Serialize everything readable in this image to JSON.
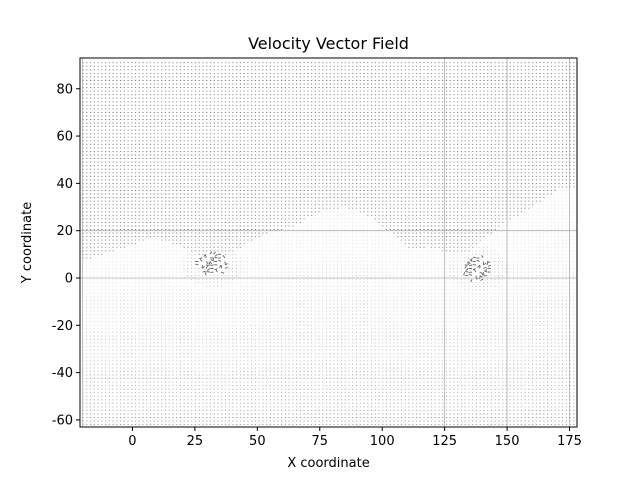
{
  "chart_data": {
    "type": "quiver",
    "title": "Velocity Vector Field",
    "xlabel": "X coordinate",
    "ylabel": "Y coordinate",
    "xlim": [
      -21,
      178
    ],
    "ylim": [
      -63,
      93
    ],
    "xticks": [
      0,
      25,
      50,
      75,
      100,
      125,
      150,
      175
    ],
    "yticks": [
      -60,
      -40,
      -20,
      0,
      20,
      40,
      60,
      80
    ],
    "grid": true,
    "grid_lines_x": [
      -20,
      125,
      150,
      175
    ],
    "grid_lines_y": [
      0,
      20
    ],
    "field_region": {
      "x_range": [
        -20,
        177
      ],
      "y_range": [
        -62,
        92
      ],
      "spacing": 1.5
    },
    "upper_boundary": [
      {
        "x": -20,
        "y": 7
      },
      {
        "x": -5,
        "y": 12
      },
      {
        "x": 8,
        "y": 17
      },
      {
        "x": 20,
        "y": 13
      },
      {
        "x": 30,
        "y": 8
      },
      {
        "x": 38,
        "y": 10
      },
      {
        "x": 45,
        "y": 14
      },
      {
        "x": 55,
        "y": 19
      },
      {
        "x": 65,
        "y": 22
      },
      {
        "x": 75,
        "y": 28
      },
      {
        "x": 85,
        "y": 30
      },
      {
        "x": 95,
        "y": 26
      },
      {
        "x": 103,
        "y": 19
      },
      {
        "x": 110,
        "y": 12
      },
      {
        "x": 118,
        "y": 13
      },
      {
        "x": 125,
        "y": 11
      },
      {
        "x": 133,
        "y": 10
      },
      {
        "x": 140,
        "y": 16
      },
      {
        "x": 150,
        "y": 24
      },
      {
        "x": 160,
        "y": 30
      },
      {
        "x": 170,
        "y": 37
      },
      {
        "x": 177,
        "y": 38
      }
    ],
    "disturbance_regions": [
      {
        "x": 32,
        "y": 6
      },
      {
        "x": 138,
        "y": 4
      }
    ],
    "colors": {
      "arrow_dark": "#3a3a3a",
      "arrow_light": "#d8d8d8",
      "grid": "#b0b0b0",
      "axis": "#000000"
    }
  }
}
